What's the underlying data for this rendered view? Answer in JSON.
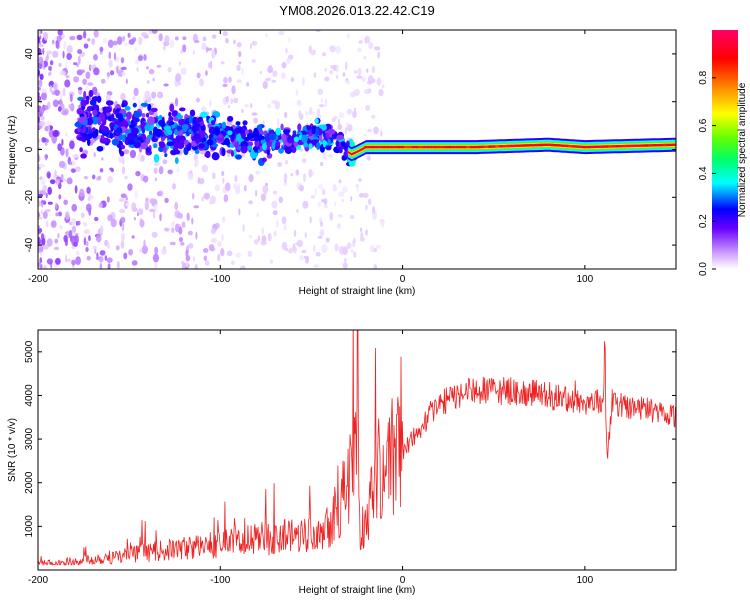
{
  "title": "YM08.2026.013.22.42.C19",
  "colors": {
    "snr_line": "#ee2222",
    "axis": "#000000"
  },
  "chart_data": [
    {
      "type": "heatmap",
      "name": "spectrogram",
      "xlabel": "Height of straight line (km)",
      "ylabel": "Frequency (Hz)",
      "xlim": [
        -200,
        150
      ],
      "ylim": [
        -50,
        50
      ],
      "xticks": [
        -200,
        -100,
        0,
        100
      ],
      "yticks": [
        -40,
        -20,
        0,
        20,
        40
      ],
      "colorbar": {
        "label": "Normalized spectral amplitude",
        "range": [
          0,
          1
        ],
        "ticks": [
          0.0,
          0.2,
          0.4,
          0.6,
          0.8
        ],
        "tick_labels": [
          "0.0",
          "0.2",
          "0.4",
          "0.6",
          "0.8"
        ],
        "colormap": [
          "#ffffff",
          "#cc99ff",
          "#6600ff",
          "#0000ff",
          "#00ffff",
          "#00ff66",
          "#66ff00",
          "#ffff00",
          "#ff8800",
          "#ff0000",
          "#ff0066"
        ]
      },
      "ridge": {
        "x": [
          -175,
          -160,
          -140,
          -120,
          -100,
          -80,
          -60,
          -45,
          -35,
          -30,
          -28,
          -25,
          -20,
          0,
          40,
          80,
          100,
          150
        ],
        "y": [
          12,
          10,
          8,
          7,
          5,
          3,
          4,
          6,
          3,
          -1,
          -2,
          -1,
          1,
          1,
          1,
          2,
          1,
          2
        ],
        "amplitude": [
          0.4,
          0.4,
          0.5,
          0.5,
          0.5,
          0.5,
          0.55,
          0.6,
          0.55,
          0.5,
          0.6,
          0.8,
          0.9,
          0.9,
          0.95,
          0.95,
          0.95,
          0.95
        ]
      }
    },
    {
      "type": "line",
      "name": "snr",
      "xlabel": "Height of straight line (km)",
      "ylabel": "SNR (10 * v/v)",
      "xlim": [
        -200,
        150
      ],
      "ylim": [
        0,
        5500
      ],
      "xticks": [
        -200,
        -100,
        0,
        100
      ],
      "yticks": [
        1000,
        2000,
        3000,
        4000,
        5000
      ],
      "series": [
        {
          "name": "SNR",
          "x": [
            -200,
            -190,
            -180,
            -170,
            -160,
            -150,
            -140,
            -130,
            -120,
            -110,
            -100,
            -90,
            -80,
            -70,
            -60,
            -50,
            -40,
            -35,
            -30,
            -26,
            -25,
            -23,
            -20,
            -15,
            -10,
            -5,
            0,
            5,
            10,
            15,
            20,
            25,
            30,
            40,
            50,
            60,
            70,
            80,
            85,
            90,
            100,
            105,
            110,
            111,
            112,
            115,
            120,
            130,
            140,
            150
          ],
          "y": [
            150,
            150,
            200,
            250,
            300,
            350,
            400,
            450,
            500,
            550,
            600,
            650,
            700,
            750,
            800,
            900,
            1100,
            1600,
            1800,
            2800,
            4100,
            500,
            1200,
            2200,
            2400,
            2600,
            2700,
            3000,
            3200,
            3600,
            3800,
            3900,
            4000,
            4100,
            4100,
            4100,
            4050,
            4000,
            3950,
            3900,
            3850,
            3850,
            3850,
            5200,
            2400,
            3850,
            3800,
            3700,
            3650,
            3550
          ]
        }
      ]
    }
  ]
}
